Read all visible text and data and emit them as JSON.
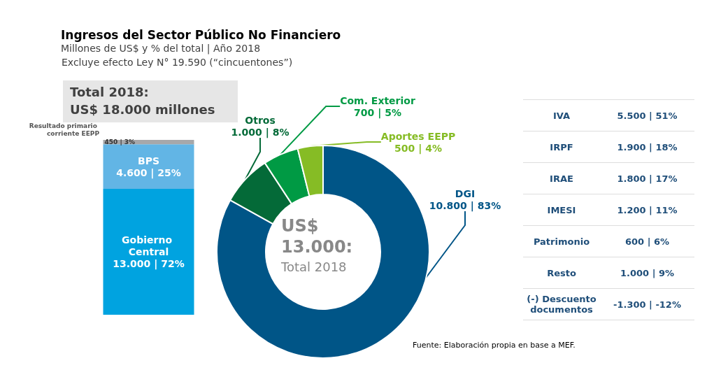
{
  "chart_data": [
    {
      "type": "bar",
      "stacked": true,
      "tick_labels": false,
      "categories": [
        null
      ],
      "annotations": [
        "Total 2018:",
        "US$ 18.000 millones"
      ],
      "series": [
        {
          "name": "Gobierno Central",
          "color": "#00a3e0",
          "values": [
            13000
          ],
          "value_labels": [
            "13.000 | 72%"
          ]
        },
        {
          "name": "BPS",
          "color": "#62b5e5",
          "values": [
            4600
          ],
          "value_labels": [
            "4.600 | 25%"
          ]
        },
        {
          "name": "Resultado primario corriente EEPP",
          "color": "#a7a8aa",
          "values": [
            450
          ],
          "value_labels": [
            "450 | 3%"
          ]
        }
      ]
    },
    {
      "type": "donut",
      "title": "Ingresos del Sector Público No Financiero",
      "subtitle": "Millones de US$ y % del total | Año 2018",
      "categories": [
        "DGI",
        "Otros",
        "Com. Exterior",
        "Aportes EEPP"
      ],
      "values": [
        10800,
        1000,
        700,
        500
      ],
      "colors": [
        "#005587",
        "#046a38",
        "#009a44",
        "#86bc25"
      ],
      "value_labels": [
        "10.800 | 83%",
        "1.000 | 8%",
        "700 | 5%",
        "500 | 4%"
      ],
      "annotations": [
        "Excluye efecto Ley N° 19.590 (“cincuentones”)",
        "US$ 13.000:",
        "Total 2018",
        "Fuente: Elaboración propia en base a MEF."
      ]
    },
    {
      "type": "other",
      "annotations": [
        "IVA",
        "5.500 | 51%",
        "IRPF",
        "1.900 | 18%",
        "IRAE",
        "1.800 | 17%",
        "IMESI",
        "1.200 | 11%",
        "Patrimonio",
        "600 | 6%",
        "Resto",
        "1.000 | 9%",
        "(-) Descuento documentos",
        "-1.300 | -12%"
      ]
    }
  ]
}
